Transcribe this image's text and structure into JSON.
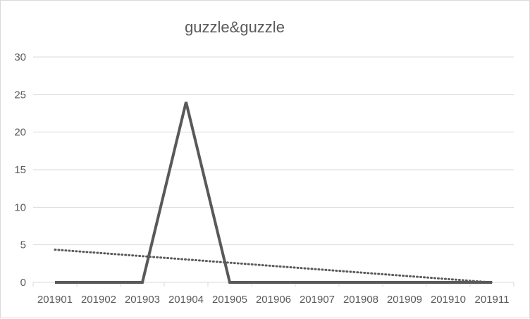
{
  "chart_data": {
    "type": "line",
    "title": "guzzle&guzzle",
    "xlabel": "",
    "ylabel": "",
    "categories": [
      "201901",
      "201902",
      "201903",
      "201904",
      "201905",
      "201906",
      "201907",
      "201908",
      "201909",
      "201910",
      "201911"
    ],
    "series": [
      {
        "values": [
          0,
          0,
          0,
          24,
          0,
          0,
          0,
          0,
          0,
          0,
          0
        ],
        "color": "#595959",
        "style": "solid"
      }
    ],
    "trendline": {
      "type": "linear",
      "style": "dotted",
      "color": "#595959",
      "start": 4.36,
      "end": 0
    },
    "ylim": [
      0,
      30
    ],
    "yticks": [
      0,
      5,
      10,
      15,
      20,
      25,
      30
    ],
    "grid": true,
    "legend": "none",
    "colors": {
      "gridline": "#d9d9d9",
      "axis_text": "#595959",
      "line": "#595959"
    }
  }
}
